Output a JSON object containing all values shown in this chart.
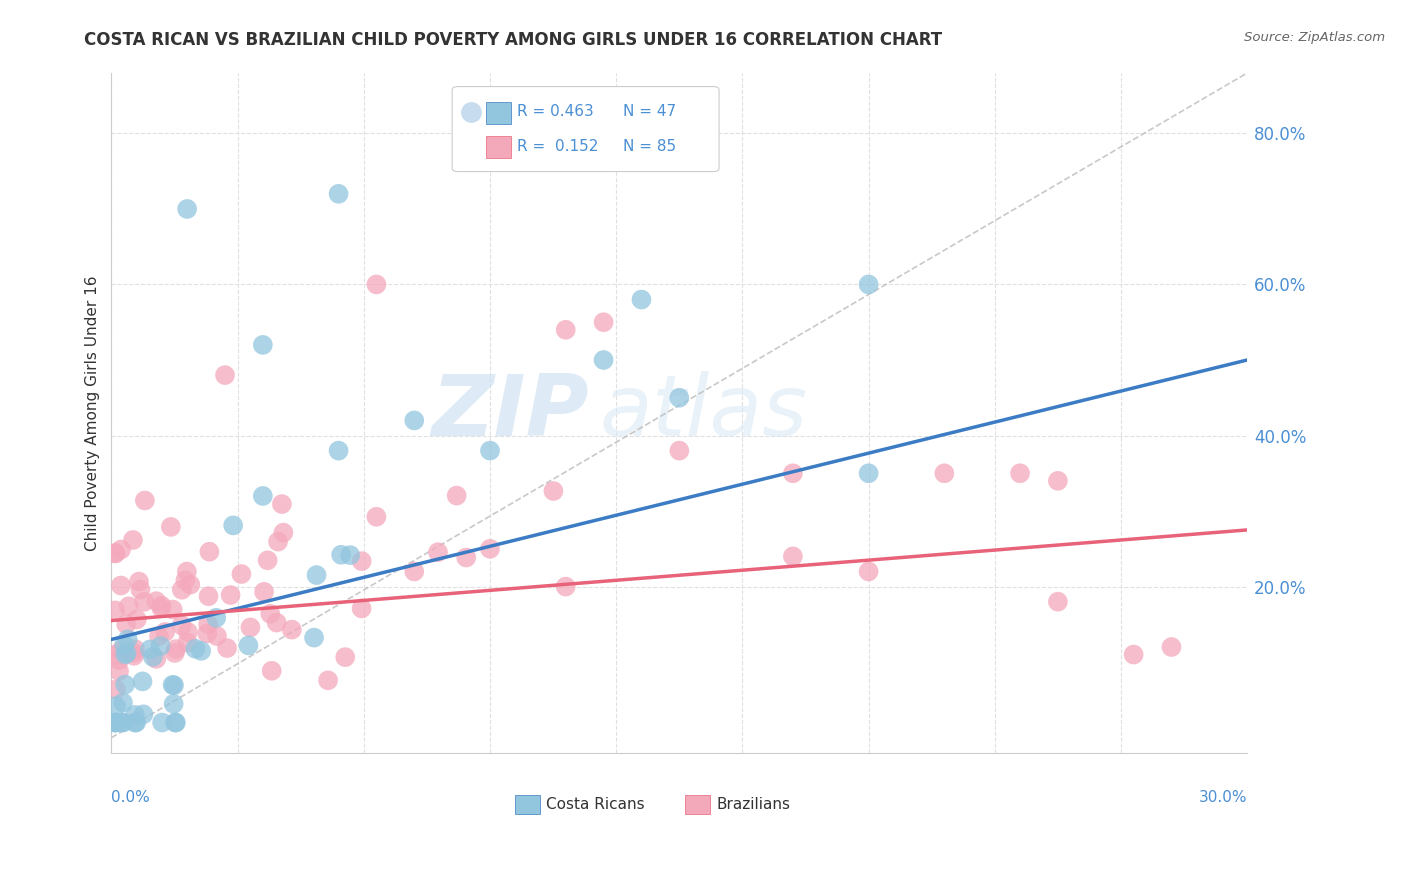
{
  "title": "COSTA RICAN VS BRAZILIAN CHILD POVERTY AMONG GIRLS UNDER 16 CORRELATION CHART",
  "source": "Source: ZipAtlas.com",
  "ylabel": "Child Poverty Among Girls Under 16",
  "xlim": [
    0.0,
    0.3
  ],
  "ylim": [
    -0.02,
    0.88
  ],
  "watermark_zip": "ZIP",
  "watermark_atlas": "atlas",
  "costa_rican_color": "#92C5DE",
  "brazilian_color": "#F4A9BB",
  "blue_line_color": "#3B7CC4",
  "pink_line_color": "#E8637A",
  "ref_line_color": "#BBBBBB",
  "background_color": "#FFFFFF",
  "grid_color": "#E0E0E0",
  "text_color": "#333333",
  "blue_label_color": "#4B8FD4",
  "right_ytick_vals": [
    0.0,
    0.2,
    0.4,
    0.6,
    0.8
  ],
  "right_ytick_labels": [
    "",
    "20.0%",
    "40.0%",
    "60.0%",
    "80.0%"
  ],
  "horiz_grid_vals": [
    0.2,
    0.4,
    0.6,
    0.8
  ],
  "vert_grid_count": 9,
  "cr_seed": 42,
  "br_seed": 99,
  "legend_r1": "R = 0.463",
  "legend_n1": "N = 47",
  "legend_r2": "R =  0.152",
  "legend_n2": "N = 85",
  "blue_trend_x0": 0.0,
  "blue_trend_y0": 0.13,
  "blue_trend_x1": 0.3,
  "blue_trend_y1": 0.5,
  "pink_trend_x0": 0.0,
  "pink_trend_y0": 0.155,
  "pink_trend_x1": 0.3,
  "pink_trend_y1": 0.275
}
